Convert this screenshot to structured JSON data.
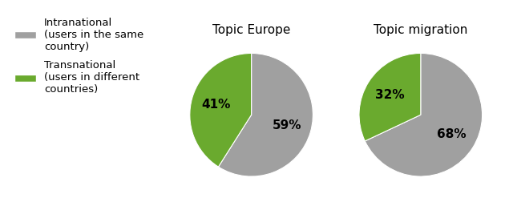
{
  "chart_data": [
    {
      "type": "pie",
      "title": "Topic Europe",
      "categories": [
        "Intranational\n(users in the same\ncountry)",
        "Transnational\n(users in different\ncountries)"
      ],
      "values": [
        59,
        41
      ],
      "value_labels": [
        "59%",
        "41%"
      ],
      "colors": [
        "#a0a0a0",
        "#6aaa2e"
      ],
      "legend": "upper left"
    },
    {
      "type": "pie",
      "title": "Topic migration",
      "categories": [
        "Intranational\n(users in the same\ncountry)",
        "Transnational\n(users in different\ncountries)"
      ],
      "values": [
        68,
        32
      ],
      "value_labels": [
        "68%",
        "32%"
      ],
      "colors": [
        "#a0a0a0",
        "#6aaa2e"
      ]
    }
  ]
}
